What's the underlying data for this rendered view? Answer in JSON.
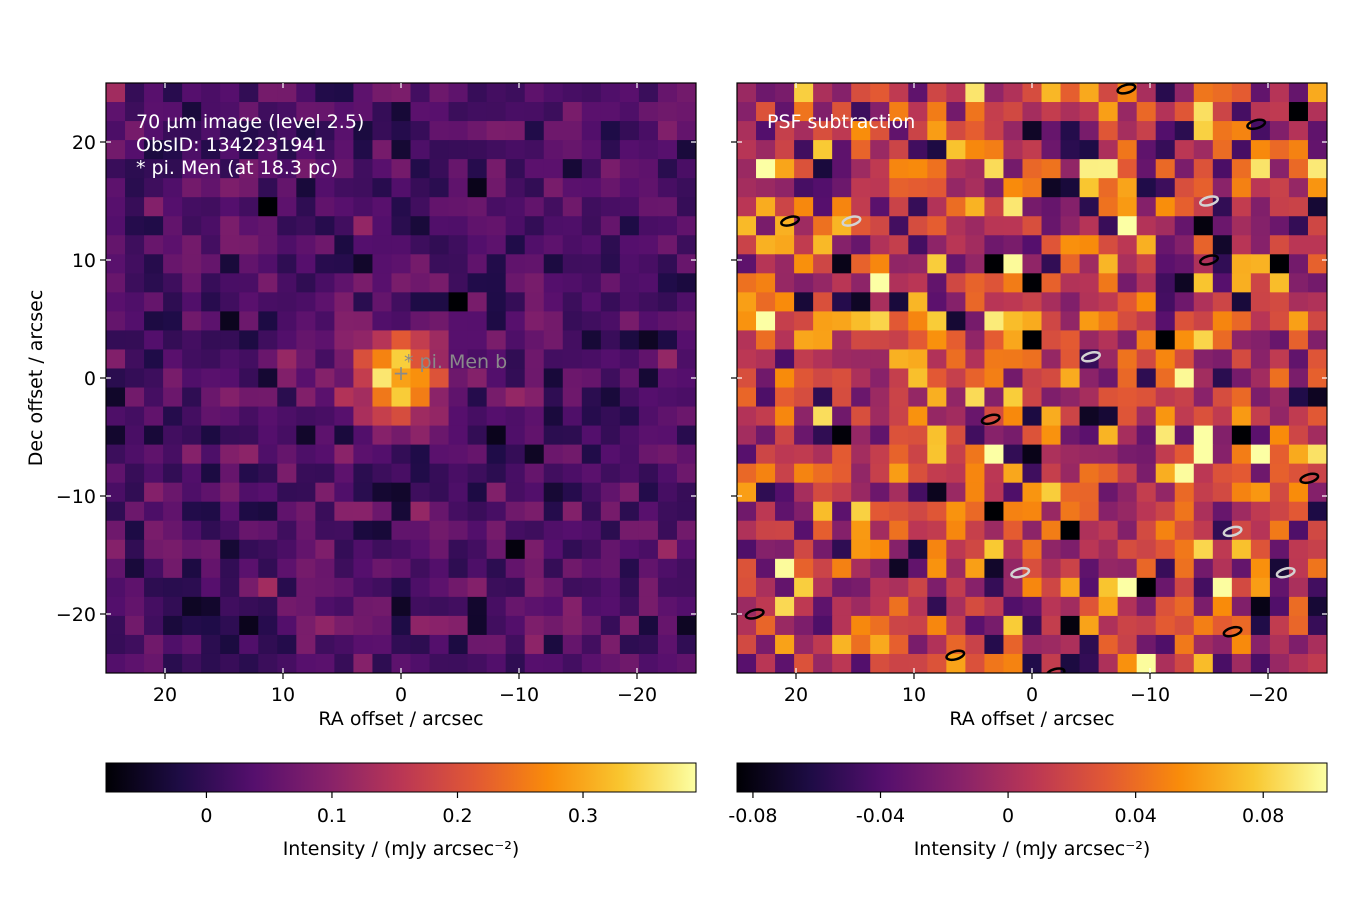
{
  "chart_data": [
    {
      "type": "heatmap",
      "title": "",
      "annotations": [
        "70 µm image (level 2.5)",
        "ObsID: 1342231941",
        "* pi. Men (at 18.3 pc)"
      ],
      "source_label": "* pi. Men b",
      "source_position": [
        0,
        0
      ],
      "xlabel": "RA offset / arcsec",
      "ylabel": "Dec offset / arcsec",
      "xlim": [
        25,
        -25
      ],
      "ylim": [
        -25,
        25
      ],
      "xticks": [
        20,
        10,
        0,
        -10,
        -20
      ],
      "xtick_labels": [
        "20",
        "10",
        "0",
        "−10",
        "−20"
      ],
      "yticks": [
        20,
        10,
        0,
        -10,
        -20
      ],
      "ytick_labels": [
        "20",
        "10",
        "0",
        "−10",
        "−20"
      ],
      "grid_cells": [
        31,
        31
      ],
      "colormap": "inferno",
      "colorbar": {
        "label": "Intensity / (mJy arcsec⁻²)",
        "range": [
          -0.08,
          0.39
        ],
        "ticks": [
          0,
          0.1,
          0.2,
          0.3
        ],
        "tick_labels": [
          "0",
          "0.1",
          "0.2",
          "0.3"
        ]
      },
      "background_level": 0.03,
      "background_scatter": 0.035,
      "peak_intensity": 0.38,
      "source_fwhm_arcsec": 5.5
    },
    {
      "type": "heatmap",
      "title": "",
      "annotations": [
        "PSF subtraction"
      ],
      "xlabel": "RA offset / arcsec",
      "ylabel": "",
      "xlim": [
        25,
        -25
      ],
      "ylim": [
        -25,
        25
      ],
      "xticks": [
        20,
        10,
        0,
        -10,
        -20
      ],
      "xtick_labels": [
        "20",
        "10",
        "0",
        "−10",
        "−20"
      ],
      "yticks": [
        20,
        10,
        0,
        -10,
        -20
      ],
      "grid_cells": [
        31,
        31
      ],
      "colormap": "inferno",
      "colorbar": {
        "label": "Intensity / (mJy arcsec⁻²)",
        "range": [
          -0.085,
          0.1
        ],
        "ticks": [
          -0.08,
          -0.04,
          0,
          0.04,
          0.08
        ],
        "tick_labels": [
          "-0.08",
          "-0.04",
          "0",
          "0.04",
          "0.08"
        ]
      },
      "background_level": 0.01,
      "background_scatter": 0.04,
      "contours": [
        {
          "x": 20.5,
          "y": 13.3,
          "color": "black"
        },
        {
          "x": 15.3,
          "y": 13.3,
          "color": "lightgray"
        },
        {
          "x": -19.0,
          "y": 21.5,
          "color": "black"
        },
        {
          "x": -8.0,
          "y": 24.5,
          "color": "black"
        },
        {
          "x": -15.0,
          "y": 15.0,
          "color": "lightgray"
        },
        {
          "x": -15.0,
          "y": 10.0,
          "color": "black"
        },
        {
          "x": -5.0,
          "y": 1.8,
          "color": "lightgray"
        },
        {
          "x": 3.5,
          "y": -3.5,
          "color": "black"
        },
        {
          "x": -23.5,
          "y": -8.5,
          "color": "black"
        },
        {
          "x": -17.0,
          "y": -13.0,
          "color": "lightgray"
        },
        {
          "x": 1.0,
          "y": -16.5,
          "color": "lightgray"
        },
        {
          "x": -21.5,
          "y": -16.5,
          "color": "lightgray"
        },
        {
          "x": 23.5,
          "y": -20.0,
          "color": "black"
        },
        {
          "x": -17.0,
          "y": -21.5,
          "color": "black"
        },
        {
          "x": 6.5,
          "y": -23.5,
          "color": "black"
        },
        {
          "x": -2.0,
          "y": -25.0,
          "color": "black"
        }
      ]
    }
  ]
}
